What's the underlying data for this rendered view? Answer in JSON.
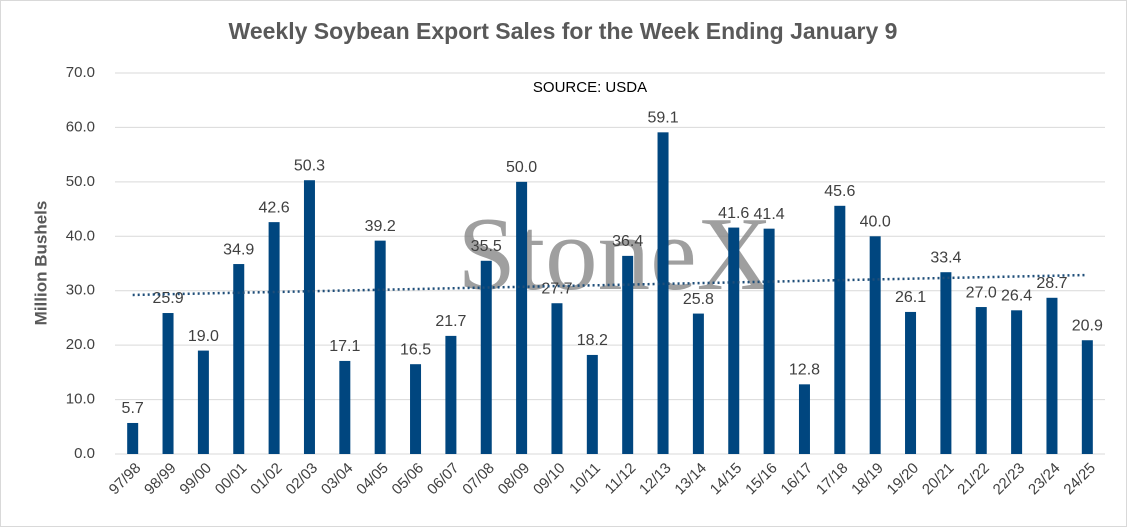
{
  "chart_data": {
    "type": "bar",
    "title": "Weekly Soybean Export Sales for the Week Ending January 9",
    "annotation": "SOURCE: USDA",
    "watermark": "StoneX",
    "y_label": "Million Bushels",
    "categories": [
      "97/98",
      "98/99",
      "99/00",
      "00/01",
      "01/02",
      "02/03",
      "03/04",
      "04/05",
      "05/06",
      "06/07",
      "07/08",
      "08/09",
      "09/10",
      "10/11",
      "11/12",
      "12/13",
      "13/14",
      "14/15",
      "15/16",
      "16/17",
      "17/18",
      "18/19",
      "19/20",
      "20/21",
      "21/22",
      "22/23",
      "23/24",
      "24/25"
    ],
    "values": [
      5.7,
      25.9,
      19.0,
      34.9,
      42.6,
      50.3,
      17.1,
      39.2,
      16.5,
      21.7,
      35.5,
      50.0,
      27.7,
      18.2,
      36.4,
      59.1,
      25.8,
      41.6,
      41.4,
      12.8,
      45.6,
      40.0,
      26.1,
      33.4,
      27.0,
      26.4,
      28.7,
      20.9
    ],
    "value_labels": [
      "5.7",
      "25.9",
      "19.0",
      "34.9",
      "42.6",
      "50.3",
      "17.1",
      "39.2",
      "16.5",
      "21.7",
      "35.5",
      "50.0",
      "27.7",
      "18.2",
      "36.4",
      "59.1",
      "25.8",
      "41.6",
      "41.4",
      "12.8",
      "45.6",
      "40.0",
      "26.1",
      "33.4",
      "27.0",
      "26.4",
      "28.7",
      "20.9"
    ],
    "color": "#00467f",
    "trendline": true,
    "trendline_color": "#1f4e79",
    "ylim": [
      0,
      70
    ],
    "yticks": [
      {
        "value": 0,
        "label": "0.0"
      },
      {
        "value": 10,
        "label": "10.0"
      },
      {
        "value": 20,
        "label": "20.0"
      },
      {
        "value": 30,
        "label": "30.0"
      },
      {
        "value": 40,
        "label": "40.0"
      },
      {
        "value": 50,
        "label": "50.0"
      },
      {
        "value": 60,
        "label": "60.0"
      },
      {
        "value": 70,
        "label": "70.0"
      }
    ],
    "grid": true
  }
}
